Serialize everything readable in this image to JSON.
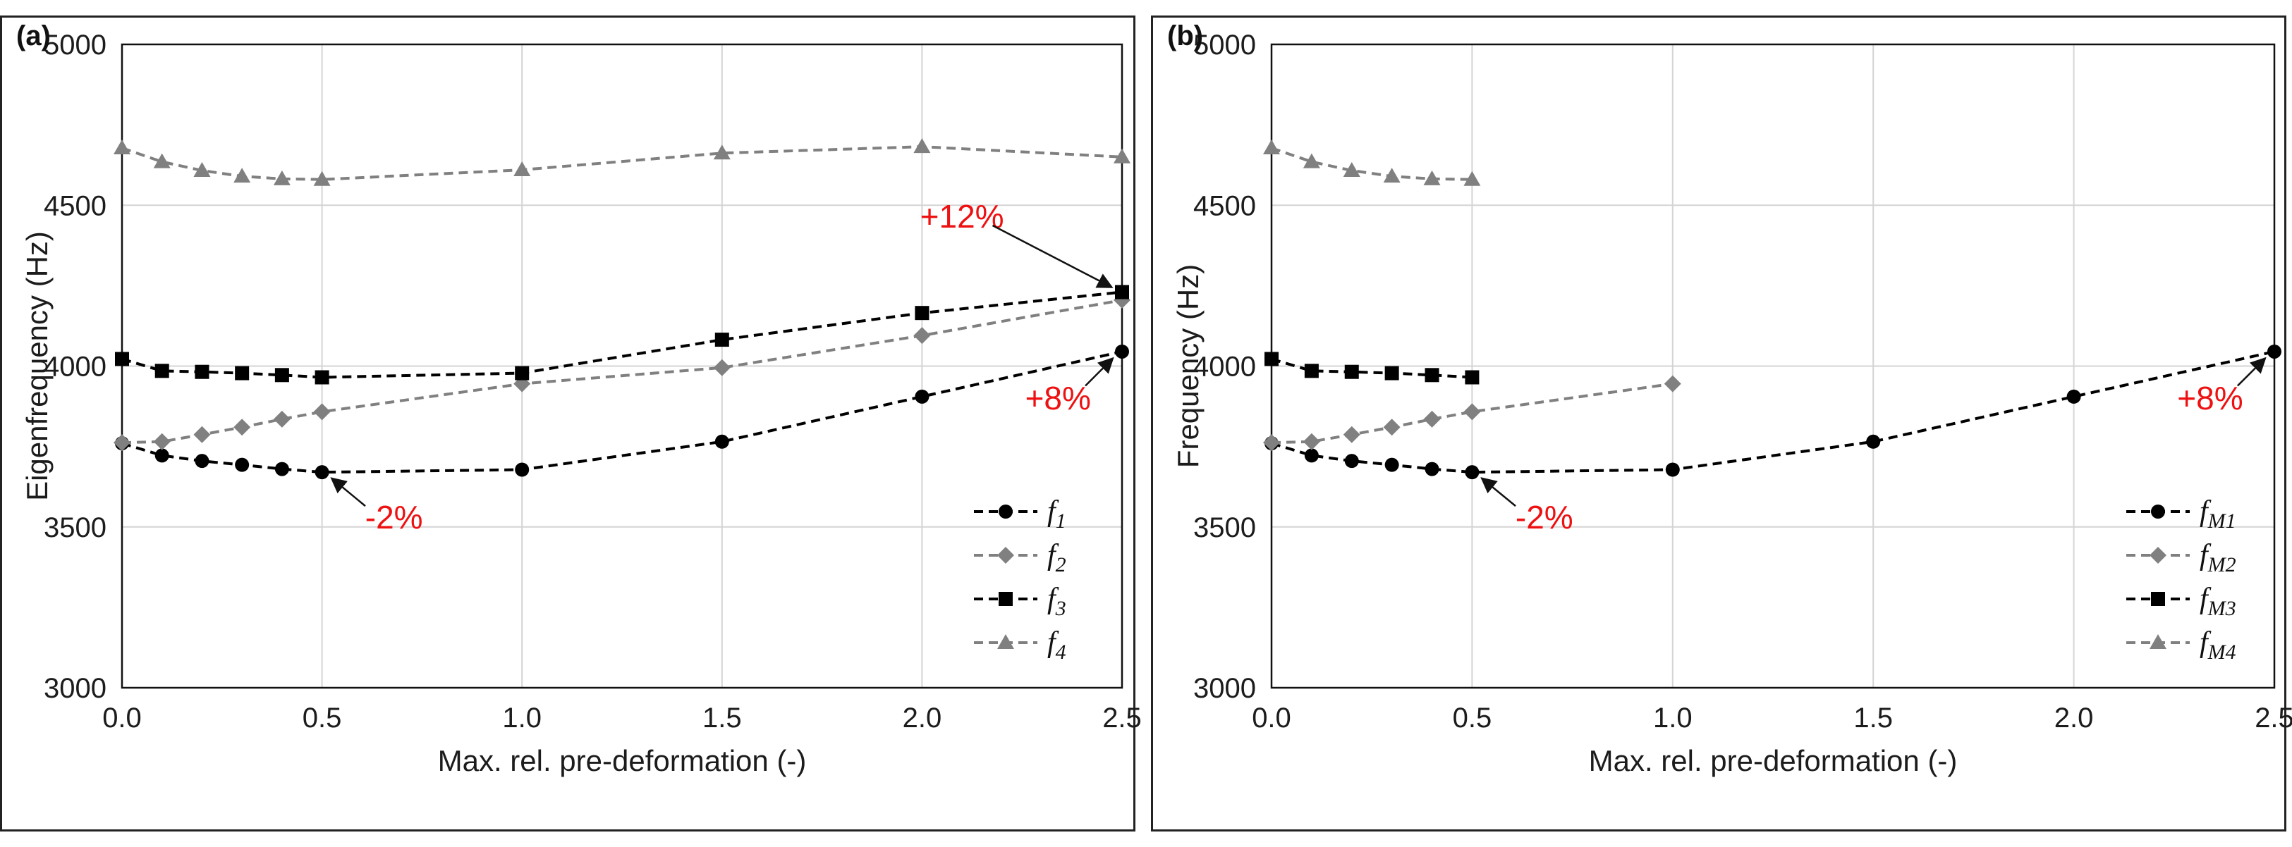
{
  "chart_data": [
    {
      "panel_label": "(a)",
      "type": "line",
      "xlabel": "Max. rel. pre-deformation (-)",
      "ylabel": "Eigenfrequency (Hz)",
      "xlim": [
        0,
        2.5
      ],
      "ylim": [
        3000,
        5000
      ],
      "x_ticks": [
        "0.0",
        "0.5",
        "1.0",
        "1.5",
        "2.0",
        "2.5"
      ],
      "y_ticks": [
        "3000",
        "3500",
        "4000",
        "4500",
        "5000"
      ],
      "grid": true,
      "legend_position": "bottom-right",
      "series": [
        {
          "name": "f",
          "sub": "1",
          "color": "#000000",
          "marker": "circle",
          "x": [
            0,
            0.1,
            0.2,
            0.3,
            0.4,
            0.5,
            1.0,
            1.5,
            2.0,
            2.5
          ],
          "y": [
            3760,
            3722,
            3705,
            3693,
            3680,
            3670,
            3678,
            3765,
            3905,
            4045
          ]
        },
        {
          "name": "f",
          "sub": "2",
          "color": "#808080",
          "marker": "diamond",
          "x": [
            0,
            0.1,
            0.2,
            0.3,
            0.4,
            0.5,
            1.0,
            1.5,
            2.0,
            2.5
          ],
          "y": [
            3762,
            3765,
            3787,
            3810,
            3835,
            3858,
            3945,
            3995,
            4095,
            4205
          ]
        },
        {
          "name": "f",
          "sub": "3",
          "color": "#000000",
          "marker": "square",
          "x": [
            0,
            0.1,
            0.2,
            0.3,
            0.4,
            0.5,
            1.0,
            1.5,
            2.0,
            2.5
          ],
          "y": [
            4022,
            3985,
            3982,
            3978,
            3972,
            3965,
            3978,
            4082,
            4165,
            4230
          ]
        },
        {
          "name": "f",
          "sub": "4",
          "color": "#808080",
          "marker": "triangle",
          "x": [
            0,
            0.1,
            0.2,
            0.3,
            0.4,
            0.5,
            1.0,
            1.5,
            2.0,
            2.5
          ],
          "y": [
            4678,
            4635,
            4608,
            4590,
            4582,
            4580,
            4610,
            4662,
            4682,
            4650
          ]
        }
      ],
      "annotations": [
        {
          "text": "+12%",
          "target_x": 2.5,
          "target_y": 4230,
          "text_x": 2.1,
          "text_y": 4430
        },
        {
          "text": "+8%",
          "target_x": 2.5,
          "target_y": 4045,
          "text_x": 2.34,
          "text_y": 3865
        },
        {
          "text": "-2%",
          "target_x": 0.5,
          "target_y": 3670,
          "text_x": 0.68,
          "text_y": 3495
        }
      ]
    },
    {
      "panel_label": "(b)",
      "type": "line",
      "xlabel": "Max. rel. pre-deformation (-)",
      "ylabel": "Frequency (Hz)",
      "xlim": [
        0,
        2.5
      ],
      "ylim": [
        3000,
        5000
      ],
      "x_ticks": [
        "0.0",
        "0.5",
        "1.0",
        "1.5",
        "2.0",
        "2.5"
      ],
      "y_ticks": [
        "3000",
        "3500",
        "4000",
        "4500",
        "5000"
      ],
      "grid": true,
      "legend_position": "bottom-right",
      "series": [
        {
          "name": "f",
          "sub": "M1",
          "color": "#000000",
          "marker": "circle",
          "x": [
            0,
            0.1,
            0.2,
            0.3,
            0.4,
            0.5,
            1.0,
            1.5,
            2.0,
            2.5
          ],
          "y": [
            3760,
            3722,
            3705,
            3693,
            3680,
            3670,
            3678,
            3765,
            3905,
            4045
          ]
        },
        {
          "name": "f",
          "sub": "M2",
          "color": "#808080",
          "marker": "diamond",
          "x": [
            0,
            0.1,
            0.2,
            0.3,
            0.4,
            0.5,
            1.0
          ],
          "y": [
            3762,
            3765,
            3787,
            3810,
            3835,
            3858,
            3945
          ]
        },
        {
          "name": "f",
          "sub": "M3",
          "color": "#000000",
          "marker": "square",
          "x": [
            0,
            0.1,
            0.2,
            0.3,
            0.4,
            0.5
          ],
          "y": [
            4022,
            3985,
            3982,
            3978,
            3972,
            3965
          ]
        },
        {
          "name": "f",
          "sub": "M4",
          "color": "#808080",
          "marker": "triangle",
          "x": [
            0,
            0.1,
            0.2,
            0.3,
            0.4,
            0.5
          ],
          "y": [
            4678,
            4635,
            4608,
            4590,
            4582,
            4580
          ]
        }
      ],
      "annotations": [
        {
          "text": "+8%",
          "target_x": 2.5,
          "target_y": 4045,
          "text_x": 2.34,
          "text_y": 3865
        },
        {
          "text": "-2%",
          "target_x": 0.5,
          "target_y": 3670,
          "text_x": 0.68,
          "text_y": 3495
        }
      ]
    }
  ]
}
